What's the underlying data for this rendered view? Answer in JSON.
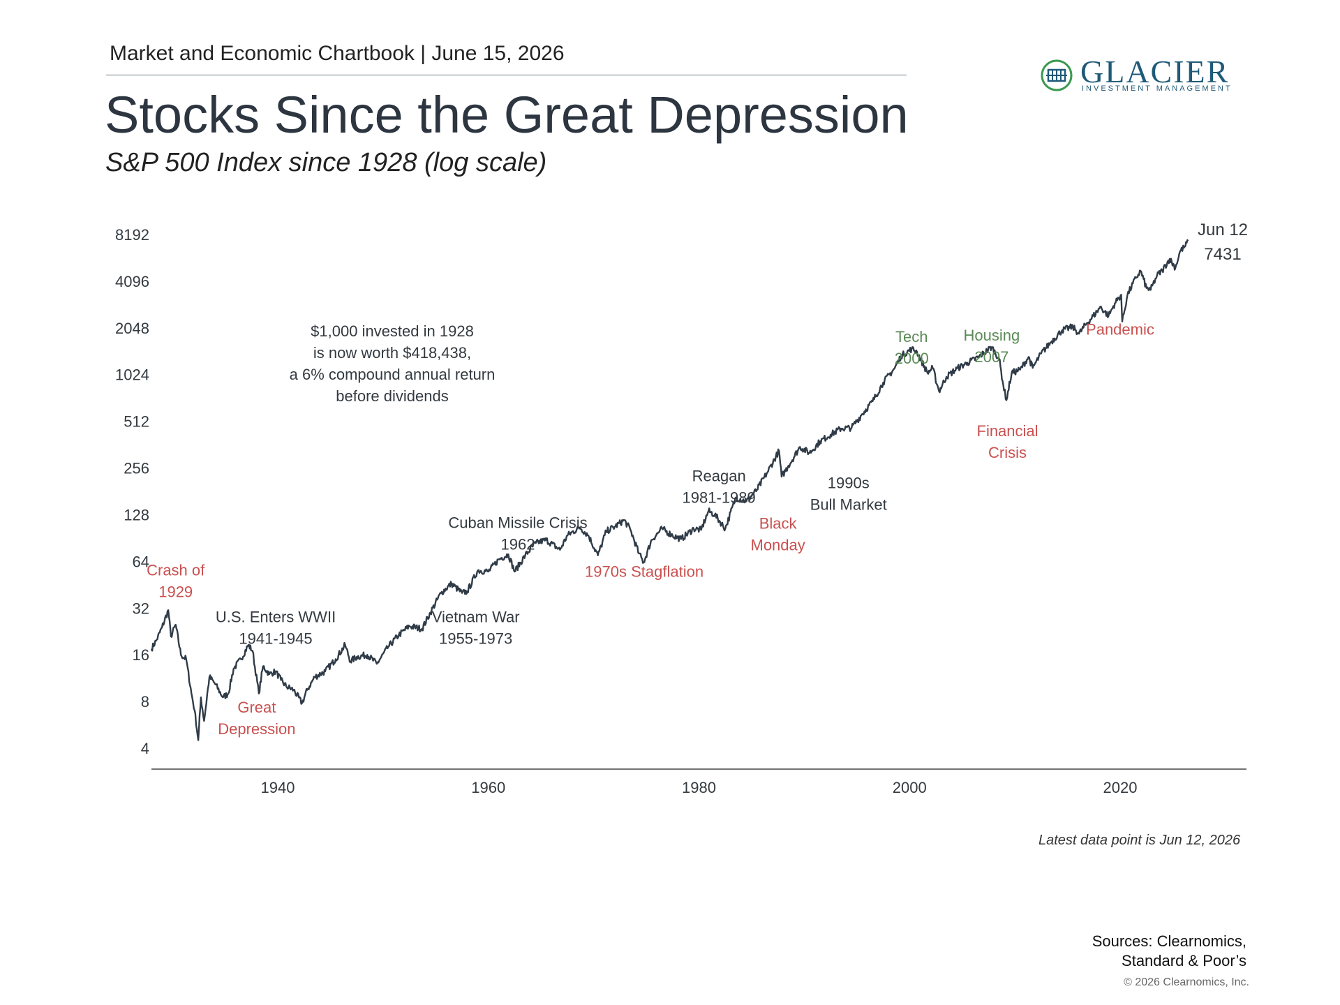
{
  "header": {
    "text": "Market and Economic Chartbook | June 15, 2026"
  },
  "logo": {
    "name": "GLACIER",
    "tagline": "INVESTMENT MANAGEMENT"
  },
  "title": "Stocks Since the Great Depression",
  "subtitle": "S&P 500 Index since 1928 (log scale)",
  "footer": {
    "note": "Latest data point is Jun 12, 2026",
    "sources_line1": "Sources: Clearnomics,",
    "sources_line2": "Standard & Poor’s",
    "copyright": "© 2026 Clearnomics, Inc."
  },
  "colors": {
    "line": "#2f3b47",
    "crisis": "#c9504f",
    "bubble": "#5a8a56",
    "neutral": "#333a40",
    "axis": "#444444"
  },
  "chart_data": {
    "type": "line",
    "title": "Stocks Since the Great Depression",
    "subtitle": "S&P 500 Index since 1928 (log scale)",
    "y_scale": "log2",
    "ylim": [
      4,
      8192
    ],
    "xlim": [
      1928,
      2032
    ],
    "yticks": [
      4,
      8,
      16,
      32,
      64,
      128,
      256,
      512,
      1024,
      2048,
      4096,
      8192
    ],
    "ytick_labels": [
      "4",
      "8",
      "16",
      "32",
      "64",
      "128",
      "256",
      "512",
      "1024",
      "2048",
      "4096",
      "8192"
    ],
    "xticks": [
      1940,
      1960,
      1980,
      2000,
      2020
    ],
    "xtick_labels": [
      "1940",
      "1960",
      "1980",
      "2000",
      "2020"
    ],
    "grid": false,
    "series": [
      {
        "values": [
          [
            1928.0,
            17.5
          ],
          [
            1928.5,
            20
          ],
          [
            1929.0,
            24
          ],
          [
            1929.6,
            31
          ],
          [
            1929.85,
            21
          ],
          [
            1930.3,
            25
          ],
          [
            1930.8,
            16
          ],
          [
            1931.3,
            15
          ],
          [
            1931.8,
            9
          ],
          [
            1932.1,
            7
          ],
          [
            1932.45,
            4.5
          ],
          [
            1932.7,
            8.5
          ],
          [
            1933.0,
            6
          ],
          [
            1933.5,
            11.5
          ],
          [
            1934.0,
            10.5
          ],
          [
            1934.8,
            8.5
          ],
          [
            1935.3,
            9
          ],
          [
            1935.8,
            13
          ],
          [
            1936.5,
            15
          ],
          [
            1937.2,
            18.5
          ],
          [
            1937.6,
            17
          ],
          [
            1938.2,
            9
          ],
          [
            1938.6,
            13.5
          ],
          [
            1939.2,
            12
          ],
          [
            1939.8,
            12.5
          ],
          [
            1940.3,
            11
          ],
          [
            1940.8,
            10
          ],
          [
            1941.5,
            9.5
          ],
          [
            1942.3,
            7.8
          ],
          [
            1942.8,
            9.5
          ],
          [
            1943.5,
            11.5
          ],
          [
            1944.5,
            12.5
          ],
          [
            1945.5,
            15
          ],
          [
            1946.4,
            18.5
          ],
          [
            1946.9,
            14.5
          ],
          [
            1947.5,
            15.5
          ],
          [
            1948.5,
            16
          ],
          [
            1949.4,
            14
          ],
          [
            1950.5,
            18
          ],
          [
            1951.5,
            21.5
          ],
          [
            1952.5,
            24.5
          ],
          [
            1953.7,
            23.5
          ],
          [
            1954.5,
            30
          ],
          [
            1955.5,
            40
          ],
          [
            1956.5,
            46
          ],
          [
            1957.5,
            40
          ],
          [
            1958.0,
            41
          ],
          [
            1959.0,
            56
          ],
          [
            1960.0,
            55
          ],
          [
            1961.0,
            66
          ],
          [
            1961.9,
            71
          ],
          [
            1962.5,
            55
          ],
          [
            1963.5,
            70
          ],
          [
            1964.5,
            84
          ],
          [
            1965.5,
            88
          ],
          [
            1966.8,
            76
          ],
          [
            1967.5,
            94
          ],
          [
            1968.7,
            106
          ],
          [
            1969.5,
            94
          ],
          [
            1970.4,
            70
          ],
          [
            1971.2,
            100
          ],
          [
            1972.0,
            107
          ],
          [
            1972.9,
            118
          ],
          [
            1973.5,
            102
          ],
          [
            1974.3,
            72
          ],
          [
            1974.75,
            63
          ],
          [
            1975.5,
            88
          ],
          [
            1976.5,
            104
          ],
          [
            1977.5,
            94
          ],
          [
            1978.3,
            89
          ],
          [
            1979.5,
            104
          ],
          [
            1980.2,
            102
          ],
          [
            1980.9,
            135
          ],
          [
            1981.5,
            128
          ],
          [
            1982.5,
            104
          ],
          [
            1983.5,
            165
          ],
          [
            1984.5,
            156
          ],
          [
            1985.5,
            185
          ],
          [
            1986.5,
            240
          ],
          [
            1987.6,
            330
          ],
          [
            1987.85,
            225
          ],
          [
            1988.5,
            265
          ],
          [
            1989.6,
            350
          ],
          [
            1990.5,
            320
          ],
          [
            1991.5,
            380
          ],
          [
            1992.5,
            420
          ],
          [
            1993.5,
            460
          ],
          [
            1994.5,
            465
          ],
          [
            1995.5,
            570
          ],
          [
            1996.5,
            690
          ],
          [
            1997.5,
            910
          ],
          [
            1998.6,
            1130
          ],
          [
            1999.2,
            1350
          ],
          [
            2000.2,
            1500
          ],
          [
            2000.7,
            1440
          ],
          [
            2001.7,
            1050
          ],
          [
            2002.2,
            1130
          ],
          [
            2002.8,
            800
          ],
          [
            2003.5,
            990
          ],
          [
            2004.5,
            1120
          ],
          [
            2005.5,
            1220
          ],
          [
            2006.5,
            1320
          ],
          [
            2007.8,
            1540
          ],
          [
            2008.5,
            1300
          ],
          [
            2008.9,
            880
          ],
          [
            2009.2,
            700
          ],
          [
            2009.7,
            1050
          ],
          [
            2010.5,
            1100
          ],
          [
            2011.3,
            1330
          ],
          [
            2011.7,
            1130
          ],
          [
            2012.5,
            1400
          ],
          [
            2013.5,
            1680
          ],
          [
            2014.5,
            1980
          ],
          [
            2015.5,
            2080
          ],
          [
            2016.1,
            1880
          ],
          [
            2016.8,
            2180
          ],
          [
            2017.8,
            2600
          ],
          [
            2018.1,
            2800
          ],
          [
            2018.9,
            2450
          ],
          [
            2019.5,
            2950
          ],
          [
            2020.1,
            3350
          ],
          [
            2020.2,
            2250
          ],
          [
            2020.7,
            3350
          ],
          [
            2021.5,
            4300
          ],
          [
            2021.95,
            4770
          ],
          [
            2022.5,
            3700
          ],
          [
            2022.9,
            3600
          ],
          [
            2023.5,
            4450
          ],
          [
            2024.0,
            4800
          ],
          [
            2024.7,
            5700
          ],
          [
            2025.25,
            5000
          ],
          [
            2025.7,
            6400
          ],
          [
            2026.2,
            6900
          ],
          [
            2026.45,
            7431
          ]
        ]
      }
    ],
    "end_label": {
      "date": "Jun 12",
      "value": "7431",
      "x": 2026.45,
      "y": 7431
    },
    "callout": {
      "line1": "$1,000 invested in 1928",
      "line2": "is now worth $418,438,",
      "line3": "a 6% compound annual return",
      "line4": "before dividends"
    },
    "annotations": [
      {
        "lines": [
          "Crash of",
          "1929"
        ],
        "category": "crisis",
        "x": 1930.3,
        "y": 52
      },
      {
        "lines": [
          "Great",
          "Depression"
        ],
        "category": "crisis",
        "x": 1938.0,
        "y": 6.8
      },
      {
        "lines": [
          "U.S. Enters WWII",
          "1941-1945"
        ],
        "category": "neutral",
        "x": 1939.8,
        "y": 26
      },
      {
        "lines": [
          "Vietnam War",
          "1955-1973"
        ],
        "category": "neutral",
        "x": 1958.8,
        "y": 26
      },
      {
        "lines": [
          "Cuban Missile Crisis",
          "1962"
        ],
        "category": "neutral",
        "x": 1962.8,
        "y": 105
      },
      {
        "lines": [
          "1970s Stagflation"
        ],
        "category": "crisis",
        "x": 1974.8,
        "y": 51
      },
      {
        "lines": [
          "Reagan",
          "1981-1989"
        ],
        "category": "neutral",
        "x": 1981.9,
        "y": 210
      },
      {
        "lines": [
          "Black",
          "Monday"
        ],
        "category": "crisis",
        "x": 1987.5,
        "y": 104
      },
      {
        "lines": [
          "1990s",
          "Bull Market"
        ],
        "category": "neutral",
        "x": 1994.2,
        "y": 190
      },
      {
        "lines": [
          "Tech",
          "2000"
        ],
        "category": "bubble",
        "x": 2000.2,
        "y": 1660
      },
      {
        "lines": [
          "Housing",
          "2007"
        ],
        "category": "bubble",
        "x": 2007.8,
        "y": 1700
      },
      {
        "lines": [
          "Financial",
          "Crisis"
        ],
        "category": "crisis",
        "x": 2009.3,
        "y": 410
      },
      {
        "lines": [
          "Pandemic"
        ],
        "category": "crisis",
        "x": 2020.0,
        "y": 1850
      }
    ]
  }
}
